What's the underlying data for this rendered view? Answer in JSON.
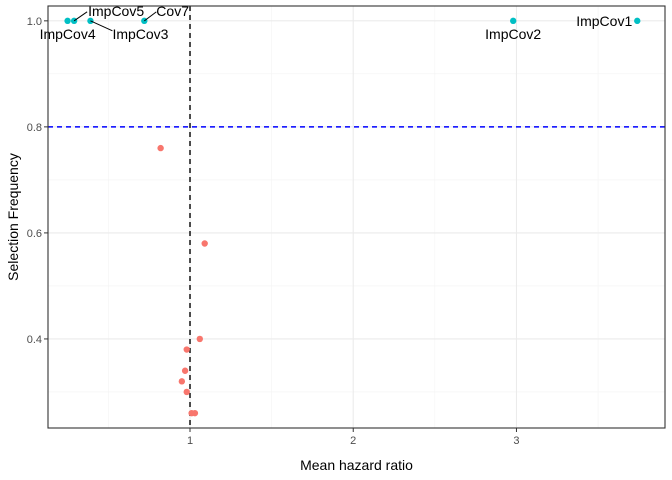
{
  "chart_data": {
    "type": "scatter",
    "title": "",
    "xlabel": "Mean hazard ratio",
    "ylabel": "Selection Frequency",
    "xlim": [
      0.13,
      3.91
    ],
    "ylim": [
      0.232,
      1.028
    ],
    "x_ticks": [
      1,
      2,
      3
    ],
    "x_tick_labels": [
      "1",
      "2",
      "3"
    ],
    "x_minor_ticks": [
      0.5,
      1.5,
      2.5,
      3.5
    ],
    "y_ticks": [
      0.4,
      0.6,
      0.8,
      1.0
    ],
    "y_tick_labels": [
      "0.4",
      "0.6",
      "0.8",
      "1.0"
    ],
    "y_minor_ticks": [
      0.3,
      0.5,
      0.7,
      0.9
    ],
    "grid": true,
    "legend": "none",
    "reference_lines": [
      {
        "orientation": "vertical",
        "value": 1.0,
        "style": "dashed",
        "color": "#000000"
      },
      {
        "orientation": "horizontal",
        "value": 0.8,
        "style": "dashed",
        "color": "#0000ff"
      }
    ],
    "series": [
      {
        "color": "#00bfc4",
        "points": [
          {
            "x": 0.25,
            "y": 1.0,
            "label": "ImpCov4"
          },
          {
            "x": 0.29,
            "y": 1.0,
            "label": "ImpCov5"
          },
          {
            "x": 0.39,
            "y": 1.0,
            "label": "ImpCov3"
          },
          {
            "x": 0.72,
            "y": 1.0,
            "label": "Cov7"
          },
          {
            "x": 2.98,
            "y": 1.0,
            "label": "ImpCov2"
          },
          {
            "x": 3.74,
            "y": 1.0,
            "label": "ImpCov1"
          }
        ]
      },
      {
        "color": "#f8766d",
        "points": [
          {
            "x": 0.82,
            "y": 0.76
          },
          {
            "x": 1.09,
            "y": 0.58
          },
          {
            "x": 1.06,
            "y": 0.4
          },
          {
            "x": 0.98,
            "y": 0.38
          },
          {
            "x": 0.97,
            "y": 0.34
          },
          {
            "x": 0.95,
            "y": 0.32
          },
          {
            "x": 0.98,
            "y": 0.3
          },
          {
            "x": 1.01,
            "y": 0.26
          },
          {
            "x": 1.03,
            "y": 0.26
          }
        ]
      }
    ]
  }
}
